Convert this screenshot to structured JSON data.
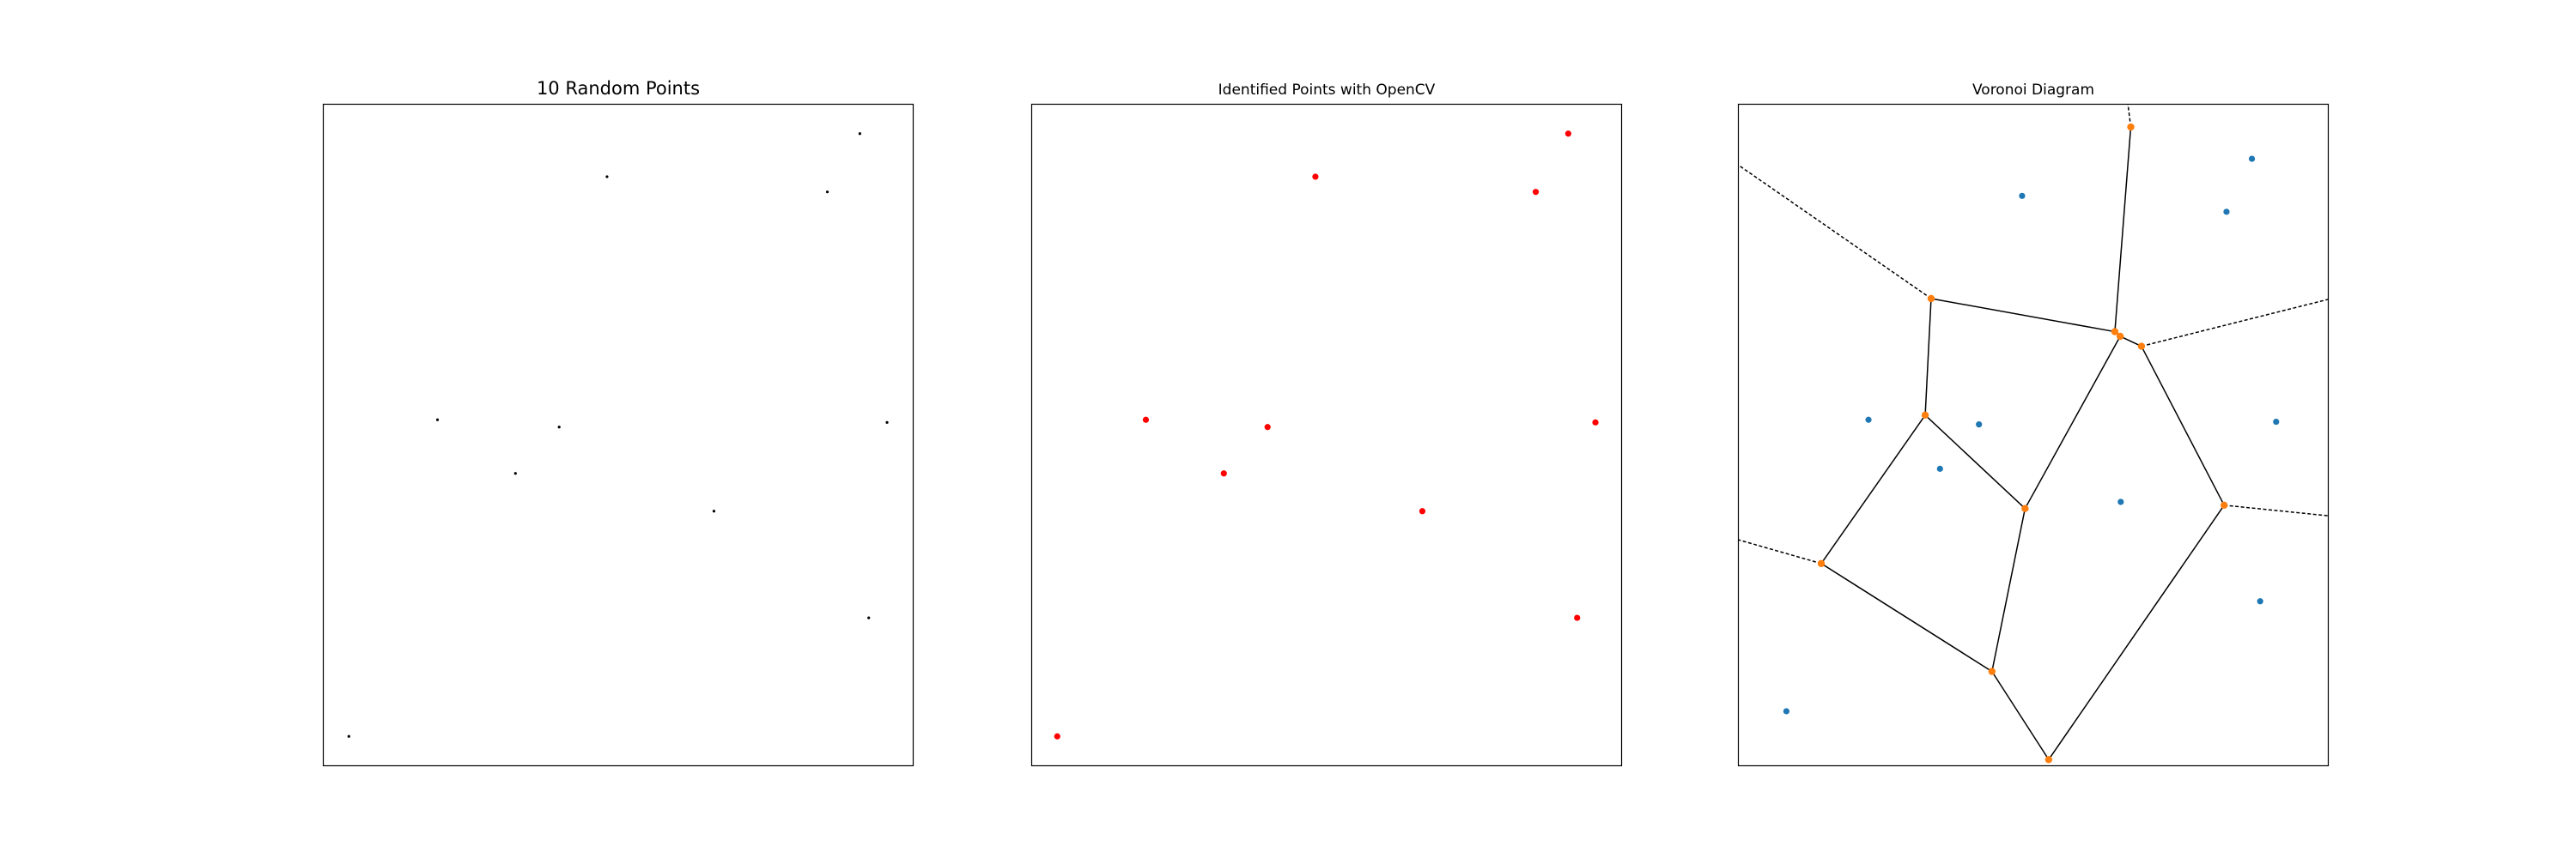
{
  "chart_data": [
    {
      "type": "scatter",
      "title": "10 Random Points",
      "xlim": [
        0,
        100
      ],
      "ylim": [
        0,
        100
      ],
      "grid": false,
      "axes_ticks": false,
      "point_color": "#000000",
      "points": [
        [
          48.1,
          89.0
        ],
        [
          90.9,
          95.5
        ],
        [
          85.4,
          86.7
        ],
        [
          19.4,
          52.3
        ],
        [
          40.0,
          51.2
        ],
        [
          32.6,
          44.2
        ],
        [
          95.5,
          51.9
        ],
        [
          66.2,
          38.5
        ],
        [
          92.4,
          22.4
        ],
        [
          4.4,
          4.5
        ]
      ]
    },
    {
      "type": "scatter",
      "title": "Identified Points with OpenCV",
      "xlim": [
        0,
        100
      ],
      "ylim": [
        0,
        100
      ],
      "grid": false,
      "axes_ticks": false,
      "point_color": "#ff0000",
      "points": [
        [
          48.1,
          89.0
        ],
        [
          90.9,
          95.5
        ],
        [
          85.4,
          86.7
        ],
        [
          19.4,
          52.3
        ],
        [
          40.0,
          51.2
        ],
        [
          32.6,
          44.2
        ],
        [
          95.5,
          51.9
        ],
        [
          66.2,
          38.5
        ],
        [
          92.4,
          22.4
        ],
        [
          4.4,
          4.5
        ]
      ]
    },
    {
      "type": "voronoi",
      "title": "Voronoi Diagram",
      "xlim": [
        0,
        100
      ],
      "ylim": [
        0,
        100
      ],
      "grid": false,
      "axes_ticks": false,
      "site_color": "#1f77b4",
      "vertex_color": "#ff7f0e",
      "edge_color": "#000000",
      "sites": [
        [
          48.1,
          86.1
        ],
        [
          87.0,
          91.7
        ],
        [
          82.7,
          83.7
        ],
        [
          22.1,
          52.3
        ],
        [
          40.8,
          51.6
        ],
        [
          34.2,
          44.9
        ],
        [
          91.1,
          52.0
        ],
        [
          64.8,
          39.9
        ],
        [
          88.4,
          24.9
        ],
        [
          8.2,
          8.3
        ]
      ],
      "vertices": [
        [
          66.5,
          96.5
        ],
        [
          32.7,
          70.6
        ],
        [
          63.8,
          65.6
        ],
        [
          64.7,
          64.9
        ],
        [
          68.3,
          63.4
        ],
        [
          31.7,
          53.0
        ],
        [
          48.6,
          38.9
        ],
        [
          82.3,
          39.4
        ],
        [
          14.1,
          30.6
        ],
        [
          43.0,
          14.3
        ],
        [
          52.6,
          1.0
        ]
      ],
      "edges": [
        [
          1,
          2
        ],
        [
          1,
          5
        ],
        [
          2,
          3
        ],
        [
          3,
          4
        ],
        [
          2,
          0
        ],
        [
          3,
          6
        ],
        [
          5,
          6
        ],
        [
          5,
          8
        ],
        [
          8,
          9
        ],
        [
          6,
          9
        ],
        [
          9,
          10
        ],
        [
          10,
          7
        ],
        [
          7,
          4
        ]
      ],
      "ridges_to_infinity": [
        [
          0,
          [
            66.0,
            100.0
          ]
        ],
        [
          1,
          [
            0.0,
            90.8
          ]
        ],
        [
          4,
          [
            100.0,
            70.5
          ]
        ],
        [
          7,
          [
            100.0,
            37.8
          ]
        ],
        [
          8,
          [
            0.0,
            34.2
          ]
        ]
      ]
    }
  ]
}
